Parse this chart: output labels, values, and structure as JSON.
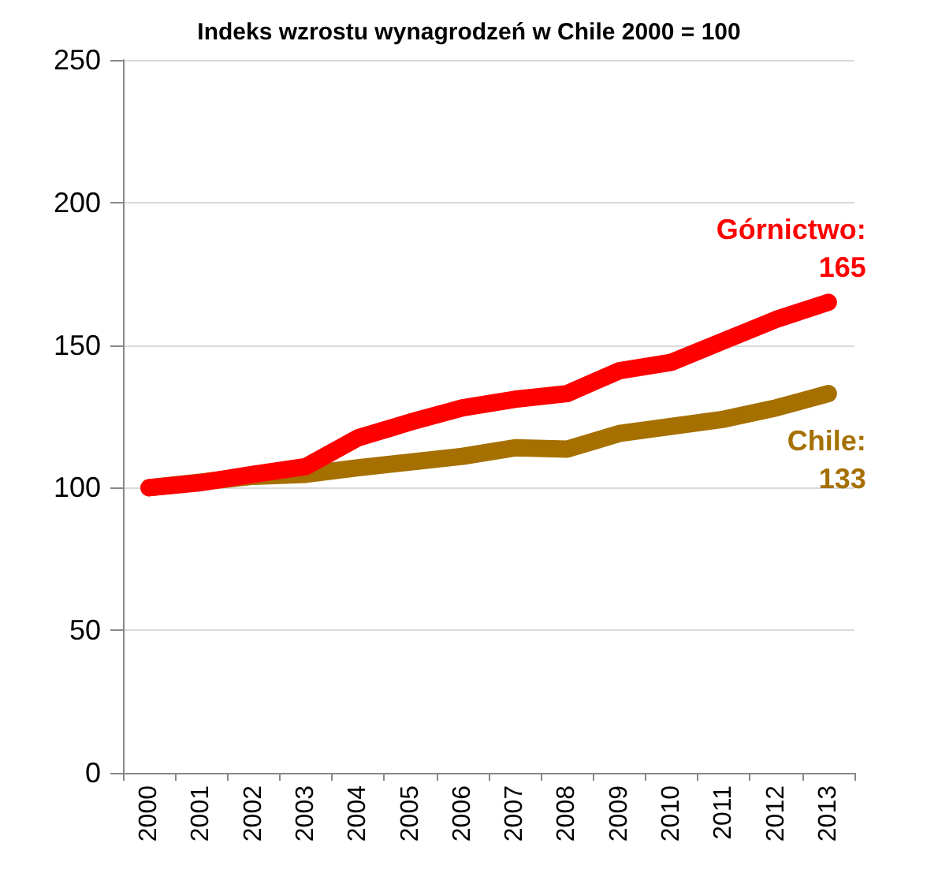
{
  "chart_data": {
    "type": "line",
    "title": "Indeks wzrostu wynagrodzeń w Chile 2000 = 100",
    "categories": [
      "2000",
      "2001",
      "2002",
      "2003",
      "2004",
      "2005",
      "2006",
      "2007",
      "2008",
      "2009",
      "2010",
      "2011",
      "2012",
      "2013"
    ],
    "series": [
      {
        "name": "Chile:",
        "color": "#a57000",
        "values": [
          100,
          102,
          104,
          104.7,
          107,
          109,
          111,
          114,
          113.5,
          119,
          121.5,
          124,
          128,
          133
        ],
        "value_labels": [
          null,
          null,
          null,
          null,
          null,
          null,
          null,
          null,
          null,
          null,
          null,
          null,
          null,
          "133"
        ]
      },
      {
        "name": "Górnictwo:",
        "color": "#ff0000",
        "values": [
          100,
          101.8,
          104.7,
          107.4,
          117.5,
          123,
          128,
          131,
          133,
          141,
          144,
          151.5,
          159,
          165
        ],
        "value_labels": [
          null,
          null,
          null,
          null,
          null,
          null,
          null,
          null,
          null,
          null,
          null,
          null,
          null,
          "165"
        ]
      }
    ],
    "ylim": [
      0,
      250
    ],
    "yticks": [
      0,
      50,
      100,
      150,
      200,
      250
    ],
    "grid": "y",
    "legend": false,
    "marker": "none",
    "line_style": "solid"
  }
}
